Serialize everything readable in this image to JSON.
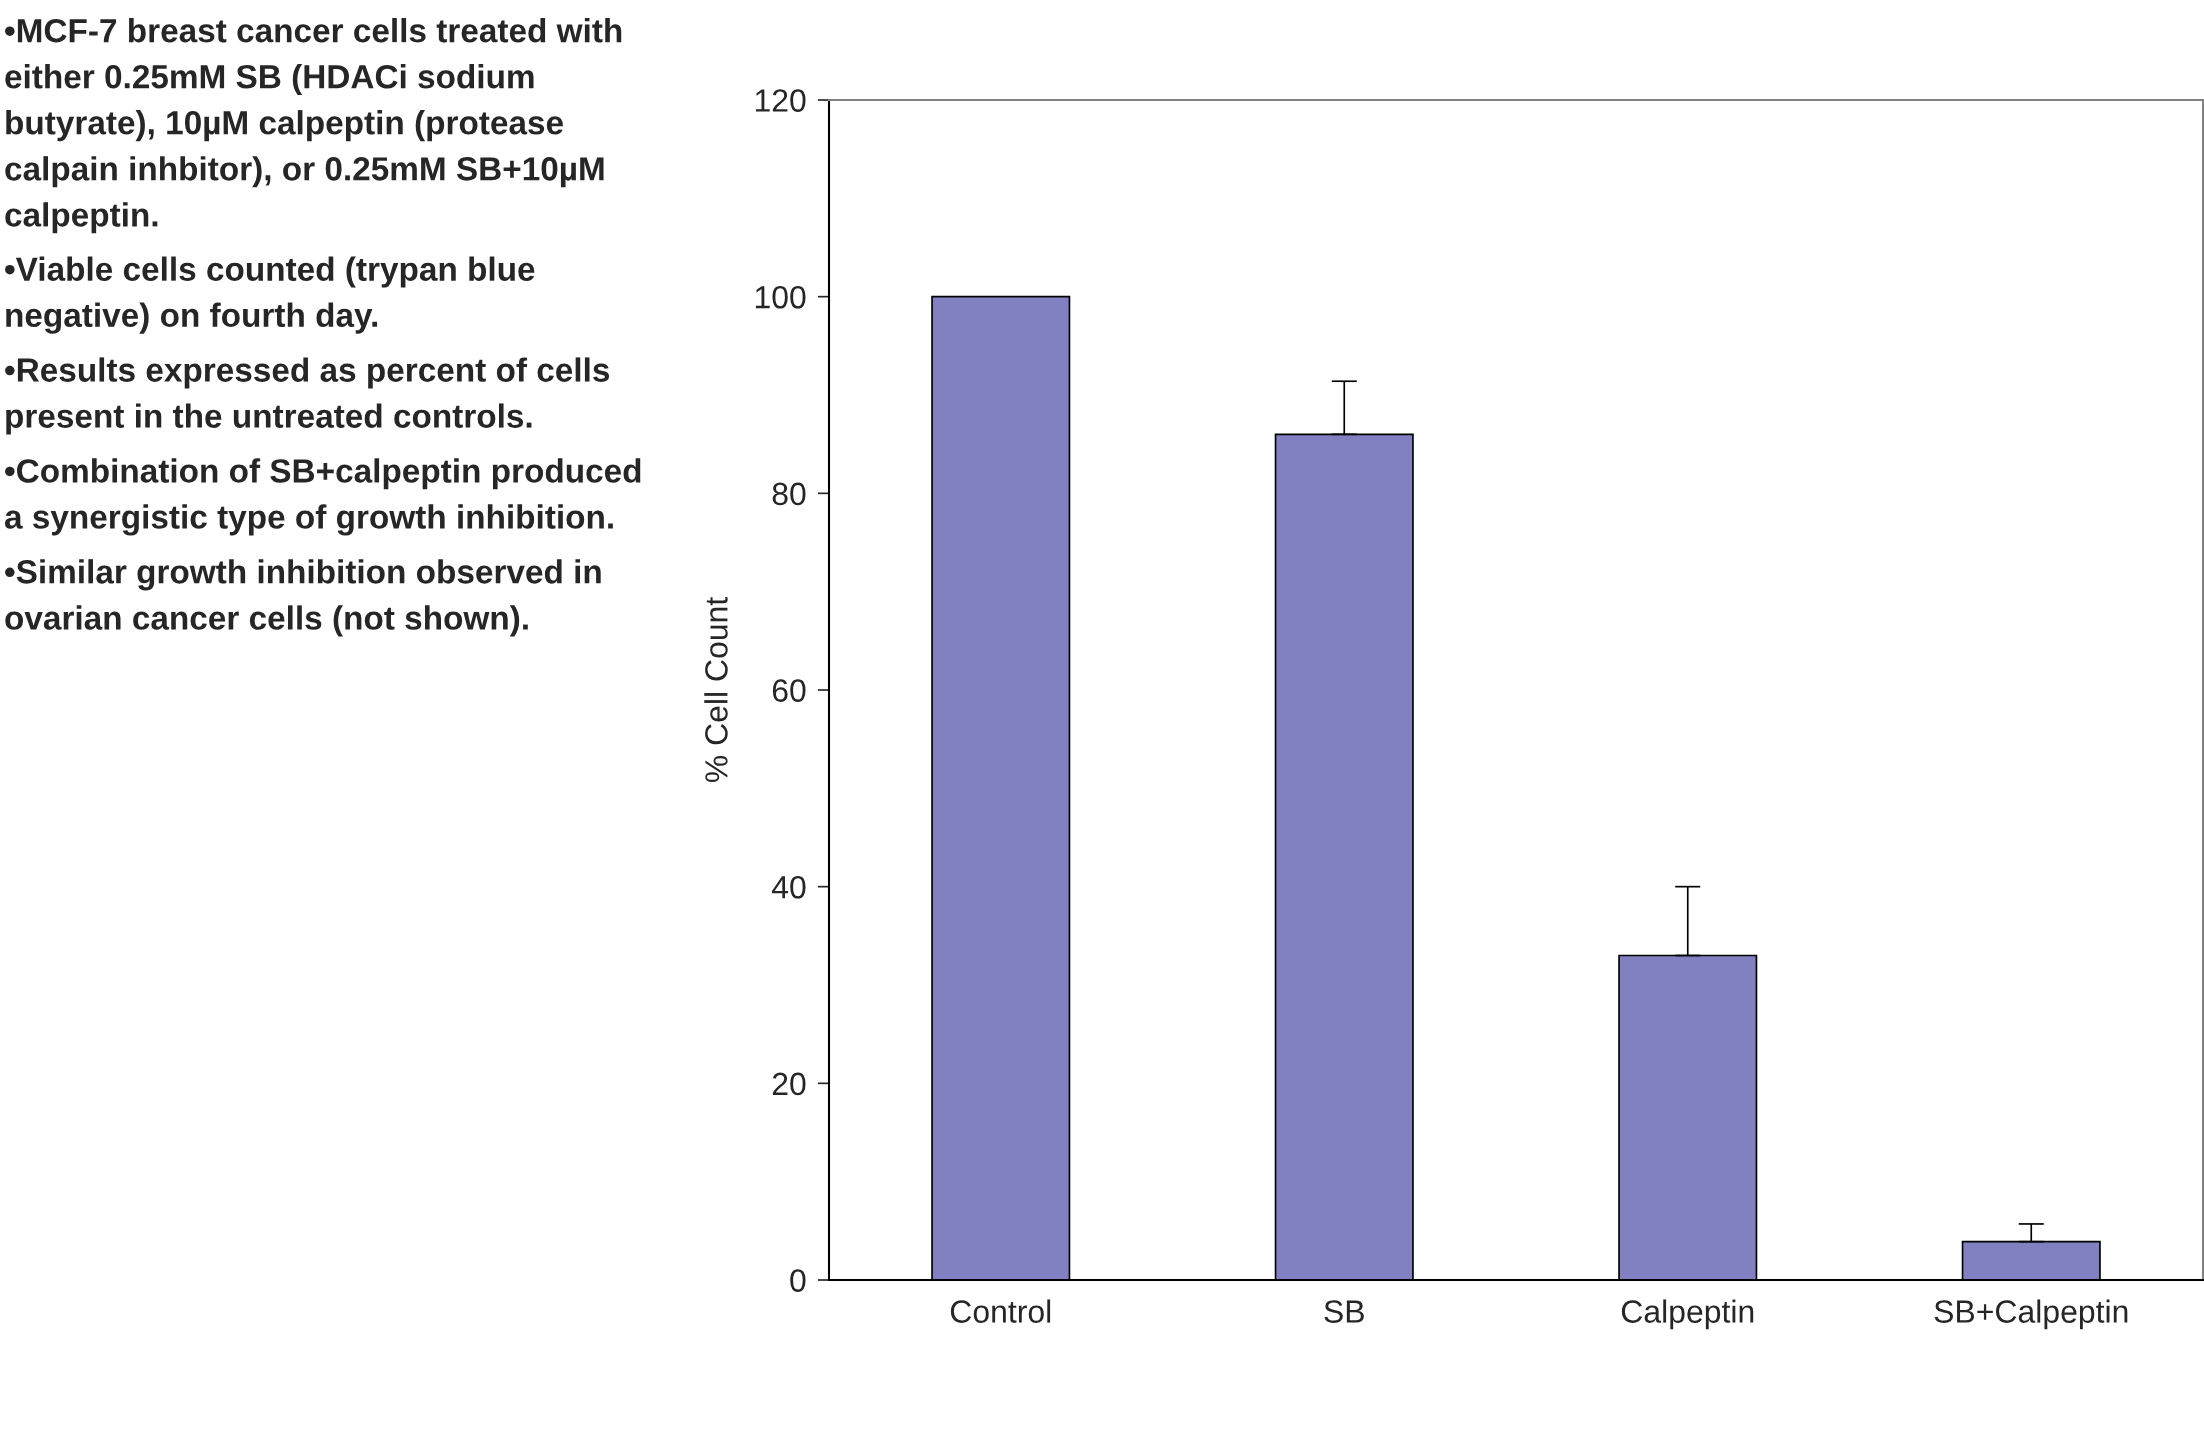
{
  "chart_data": {
    "type": "bar",
    "ylabel": "% Cell Count",
    "categories": [
      "Control",
      "SB",
      "Calpeptin",
      "SB+Calpeptin"
    ],
    "values": [
      100,
      86,
      33,
      3.9
    ],
    "errors": [
      null,
      [
        86,
        91.4
      ],
      [
        33,
        40
      ],
      [
        3.9,
        5.7
      ]
    ],
    "color": "#7676cc",
    "ylim": [
      0,
      120
    ],
    "yticks": [
      0,
      20,
      40,
      60,
      80,
      100,
      120
    ],
    "grid": false,
    "annotations": [
      "•MCF-7 breast cancer cells treated with either 0.25mM SB (HDACi sodium butyrate), 10µM calpeptin (protease calpain inhbitor), or 0.25mM SB+10µM calpeptin.",
      "•Viable cells counted (trypan blue negative) on fourth day.",
      "•Results expressed as percent of cells present in the untreated controls.",
      "•Combination of SB+calpeptin produced a synergistic type of growth inhibition.",
      "•Similar growth inhibition observed in ovarian cancer cells (not shown)."
    ]
  }
}
